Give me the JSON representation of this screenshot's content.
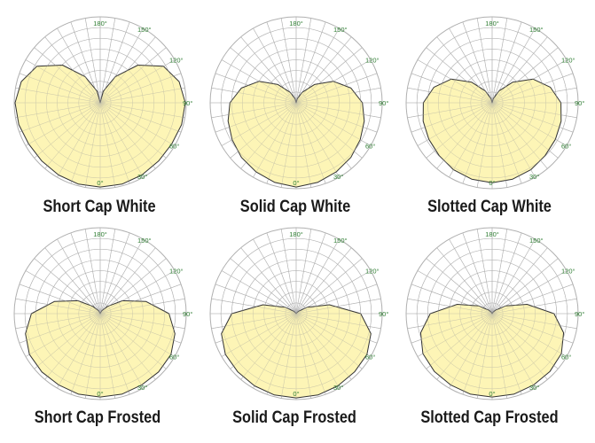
{
  "angle_tick_labels": [
    "0°",
    "30°",
    "60°",
    "90°",
    "120°",
    "150°",
    "180°"
  ],
  "colors": {
    "fill": "#fdf3a6",
    "outline": "#333333",
    "grid": "#b0b0b0",
    "tick_text": "#2e7d32",
    "title_text": "#1a1a1a"
  },
  "chart_data": [
    {
      "type": "polar",
      "title": "Short Cap White",
      "angles_deg": [
        0,
        15,
        30,
        45,
        60,
        75,
        90,
        105,
        120,
        135,
        150,
        165,
        180
      ],
      "values": [
        0.98,
        0.98,
        0.97,
        0.96,
        0.96,
        0.98,
        0.99,
        0.95,
        0.85,
        0.62,
        0.35,
        0.14,
        0.0
      ],
      "rlim": [
        0,
        1
      ],
      "symmetric": true,
      "grid": true
    },
    {
      "type": "polar",
      "title": "Solid Cap White",
      "angles_deg": [
        0,
        15,
        30,
        45,
        60,
        75,
        90,
        105,
        120,
        135,
        150,
        165,
        180
      ],
      "values": [
        0.98,
        0.96,
        0.93,
        0.9,
        0.86,
        0.82,
        0.77,
        0.66,
        0.5,
        0.3,
        0.14,
        0.05,
        0.0
      ],
      "rlim": [
        0,
        1
      ],
      "symmetric": true,
      "grid": true
    },
    {
      "type": "polar",
      "title": "Slotted Cap White",
      "angles_deg": [
        0,
        15,
        30,
        45,
        60,
        75,
        90,
        105,
        120,
        135,
        150,
        165,
        180
      ],
      "values": [
        0.93,
        0.92,
        0.9,
        0.87,
        0.85,
        0.83,
        0.8,
        0.7,
        0.55,
        0.34,
        0.16,
        0.05,
        0.0
      ],
      "rlim": [
        0,
        1
      ],
      "symmetric": true,
      "grid": true
    },
    {
      "type": "polar",
      "title": "Short Cap Frosted",
      "angles_deg": [
        0,
        15,
        30,
        45,
        60,
        75,
        90,
        105,
        120,
        135,
        150,
        165,
        180
      ],
      "values": [
        0.97,
        0.97,
        0.96,
        0.96,
        0.95,
        0.9,
        0.8,
        0.55,
        0.3,
        0.12,
        0.04,
        0.01,
        0.0
      ],
      "rlim": [
        0,
        1
      ],
      "symmetric": true,
      "grid": true
    },
    {
      "type": "polar",
      "title": "Solid Cap Frosted",
      "angles_deg": [
        0,
        15,
        30,
        45,
        60,
        75,
        90,
        105,
        120,
        135,
        150,
        165,
        180
      ],
      "values": [
        0.98,
        0.98,
        0.97,
        0.96,
        0.95,
        0.9,
        0.75,
        0.4,
        0.15,
        0.04,
        0.01,
        0.0,
        0.0
      ],
      "rlim": [
        0,
        1
      ],
      "symmetric": true,
      "grid": true
    },
    {
      "type": "polar",
      "title": "Slotted Cap Frosted",
      "angles_deg": [
        0,
        15,
        30,
        45,
        60,
        75,
        90,
        105,
        120,
        135,
        150,
        165,
        180
      ],
      "values": [
        0.97,
        0.97,
        0.96,
        0.95,
        0.93,
        0.86,
        0.72,
        0.42,
        0.18,
        0.06,
        0.02,
        0.0,
        0.0
      ],
      "rlim": [
        0,
        1
      ],
      "symmetric": true,
      "grid": true
    }
  ]
}
